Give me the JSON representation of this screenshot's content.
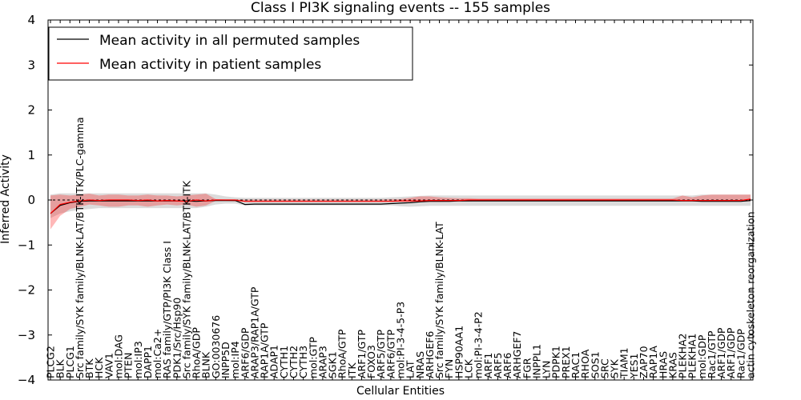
{
  "chart_data": {
    "type": "line",
    "title": "Class I PI3K signaling events -- 155 samples",
    "xlabel": "Cellular Entities",
    "ylabel": "Inferred Activity",
    "ylim": [
      -4,
      4
    ],
    "yticks": [
      -4,
      -3,
      -2,
      -1,
      0,
      1,
      2,
      3,
      4
    ],
    "ytick_labels": [
      "−4",
      "−3",
      "−2",
      "−1",
      "0",
      "1",
      "2",
      "3",
      "4"
    ],
    "legend": {
      "position": "top-left",
      "entries": [
        {
          "label": "Mean activity in all permuted samples",
          "color": "#000000"
        },
        {
          "label": "Mean activity in patient samples",
          "color": "#ff0000"
        }
      ]
    },
    "categories": [
      "PLCG2",
      "BLK",
      "PLCG1",
      "Src family/SYK family/BLNK-LAT/BTK-ITK/PLC-gamma",
      "BTK",
      "HCK",
      "VAV1",
      "mol:DAG",
      "PTEN",
      "mol:IP3",
      "DAPP1",
      "mol:Ca2+",
      "RAS family/GTP/PI3K Class I",
      "PDK1/Src/Hsp90",
      "Src family/SYK family/BLNK-LAT/BTK-ITK",
      "RhoA/GDP",
      "BLNK",
      "GO:0030676",
      "INPP5D",
      "mol:IP4",
      "ARF6/GDP",
      "ARAP3/RAP1A/GTP",
      "RAP1A/GTP",
      "ADAP1",
      "CYTH1",
      "CYTH2",
      "CYTH3",
      "mol:GTP",
      "ARAP3",
      "SGK1",
      "RhoA/GTP",
      "ITK",
      "ARF1/GTP",
      "FOXO3",
      "ARF5/GTP",
      "ARF6/GTP",
      "mol:PI-3-4-5-P3",
      "LAT",
      "NRAS",
      "ARHGEF6",
      "Src family/SYK family/BLNK-LAT",
      "FYN",
      "HSP90AA1",
      "LCK",
      "mol:PI-3-4-P2",
      "ARF1",
      "ARF5",
      "ARF6",
      "ARHGEF7",
      "FGR",
      "INPPL1",
      "LYN",
      "PDPK1",
      "PREX1",
      "RAC1",
      "RHOA",
      "SOS1",
      "SRC",
      "SYK",
      "TIAM1",
      "YES1",
      "ZAP70",
      "RAP1A",
      "HRAS",
      "KRAS",
      "PLEKHA2",
      "PLEKHA1",
      "mol:GDP",
      "Rac1/GTP",
      "ARF1/GDP",
      "ARF1/GDP",
      "Rac1/GDP",
      "actin cytoskeleton reorganization"
    ],
    "series": [
      {
        "name": "Mean activity in patient samples",
        "color": "#ff0000",
        "values": [
          -0.3,
          -0.1,
          -0.05,
          -0.02,
          0.0,
          -0.01,
          0.0,
          0.0,
          0.0,
          -0.01,
          0.0,
          -0.02,
          -0.01,
          -0.02,
          -0.03,
          0.0,
          -0.02,
          0.0,
          0.0,
          0.0,
          -0.03,
          -0.03,
          -0.03,
          -0.03,
          -0.03,
          -0.03,
          -0.03,
          -0.03,
          -0.03,
          -0.03,
          -0.03,
          -0.03,
          -0.03,
          -0.03,
          -0.03,
          -0.03,
          -0.02,
          -0.02,
          -0.02,
          -0.01,
          -0.01,
          -0.01,
          -0.01,
          0.0,
          0.0,
          0.0,
          0.0,
          0.0,
          0.0,
          0.0,
          0.0,
          0.0,
          0.0,
          0.0,
          0.0,
          0.0,
          0.0,
          0.0,
          0.0,
          0.0,
          0.0,
          0.0,
          0.0,
          0.0,
          0.0,
          -0.01,
          -0.01,
          -0.01,
          -0.01,
          -0.01,
          -0.01,
          -0.01,
          0.02
        ],
        "band_upper": [
          0.1,
          0.12,
          0.1,
          0.12,
          0.14,
          0.1,
          0.12,
          0.12,
          0.1,
          0.1,
          0.12,
          0.1,
          0.1,
          0.08,
          0.1,
          0.12,
          0.14,
          0.02,
          0.01,
          0.01,
          0.01,
          0.01,
          0.01,
          0.01,
          0.01,
          0.01,
          0.01,
          0.01,
          0.01,
          0.01,
          0.01,
          0.01,
          0.01,
          0.01,
          0.01,
          0.02,
          0.02,
          0.05,
          0.08,
          0.08,
          0.06,
          0.05,
          0.04,
          0.04,
          0.03,
          0.03,
          0.03,
          0.03,
          0.03,
          0.03,
          0.03,
          0.03,
          0.03,
          0.03,
          0.03,
          0.03,
          0.03,
          0.03,
          0.03,
          0.03,
          0.03,
          0.03,
          0.03,
          0.03,
          0.03,
          0.1,
          0.06,
          0.1,
          0.12,
          0.12,
          0.12,
          0.12,
          0.12
        ],
        "band_lower": [
          -0.65,
          -0.35,
          -0.2,
          -0.15,
          -0.1,
          -0.12,
          -0.15,
          -0.15,
          -0.12,
          -0.12,
          -0.15,
          -0.12,
          -0.1,
          -0.12,
          -0.1,
          -0.15,
          -0.12,
          -0.02,
          -0.02,
          -0.03,
          -0.04,
          -0.04,
          -0.04,
          -0.04,
          -0.04,
          -0.04,
          -0.04,
          -0.04,
          -0.04,
          -0.04,
          -0.04,
          -0.04,
          -0.04,
          -0.04,
          -0.04,
          -0.04,
          -0.04,
          -0.04,
          -0.04,
          -0.04,
          -0.04,
          -0.03,
          -0.03,
          -0.03,
          -0.02,
          -0.02,
          -0.02,
          -0.02,
          -0.02,
          -0.02,
          -0.02,
          -0.02,
          -0.02,
          -0.02,
          -0.02,
          -0.02,
          -0.02,
          -0.02,
          -0.02,
          -0.02,
          -0.02,
          -0.02,
          -0.02,
          -0.02,
          -0.02,
          -0.03,
          -0.03,
          -0.03,
          -0.03,
          -0.03,
          -0.03,
          -0.03,
          -0.03
        ]
      },
      {
        "name": "Mean activity in all permuted samples",
        "color": "#000000",
        "values": [
          -0.3,
          -0.12,
          -0.06,
          -0.03,
          -0.02,
          -0.02,
          -0.02,
          -0.02,
          -0.02,
          -0.02,
          -0.02,
          -0.02,
          -0.02,
          -0.02,
          -0.02,
          -0.03,
          -0.02,
          -0.01,
          -0.01,
          -0.01,
          -0.1,
          -0.09,
          -0.09,
          -0.09,
          -0.09,
          -0.09,
          -0.09,
          -0.09,
          -0.09,
          -0.09,
          -0.09,
          -0.09,
          -0.09,
          -0.09,
          -0.09,
          -0.08,
          -0.07,
          -0.06,
          -0.04,
          -0.03,
          -0.03,
          -0.03,
          -0.02,
          -0.02,
          -0.02,
          -0.02,
          -0.02,
          -0.02,
          -0.02,
          -0.02,
          -0.02,
          -0.02,
          -0.02,
          -0.02,
          -0.02,
          -0.02,
          -0.02,
          -0.02,
          -0.02,
          -0.02,
          -0.02,
          -0.02,
          -0.02,
          -0.02,
          -0.02,
          -0.02,
          -0.02,
          -0.03,
          -0.03,
          -0.03,
          -0.03,
          -0.03,
          -0.01
        ],
        "band_upper": [
          0.12,
          0.15,
          0.15,
          0.15,
          0.15,
          0.15,
          0.15,
          0.15,
          0.15,
          0.15,
          0.15,
          0.15,
          0.15,
          0.15,
          0.15,
          0.15,
          0.15,
          0.12,
          0.08,
          0.06,
          0.05,
          0.05,
          0.05,
          0.05,
          0.05,
          0.05,
          0.05,
          0.05,
          0.05,
          0.05,
          0.05,
          0.05,
          0.05,
          0.05,
          0.05,
          0.06,
          0.07,
          0.08,
          0.09,
          0.1,
          0.1,
          0.1,
          0.1,
          0.1,
          0.1,
          0.1,
          0.1,
          0.1,
          0.1,
          0.1,
          0.1,
          0.1,
          0.1,
          0.1,
          0.1,
          0.1,
          0.1,
          0.1,
          0.1,
          0.1,
          0.1,
          0.1,
          0.1,
          0.1,
          0.1,
          0.1,
          0.1,
          0.12,
          0.12,
          0.12,
          0.12,
          0.12,
          0.12
        ],
        "band_lower": [
          -0.4,
          -0.3,
          -0.25,
          -0.22,
          -0.2,
          -0.18,
          -0.18,
          -0.18,
          -0.18,
          -0.18,
          -0.18,
          -0.18,
          -0.18,
          -0.18,
          -0.18,
          -0.18,
          -0.15,
          -0.1,
          -0.08,
          -0.08,
          -0.12,
          -0.12,
          -0.12,
          -0.12,
          -0.12,
          -0.12,
          -0.12,
          -0.12,
          -0.12,
          -0.12,
          -0.12,
          -0.12,
          -0.12,
          -0.12,
          -0.12,
          -0.12,
          -0.14,
          -0.15,
          -0.14,
          -0.13,
          -0.13,
          -0.13,
          -0.13,
          -0.13,
          -0.13,
          -0.13,
          -0.13,
          -0.13,
          -0.13,
          -0.13,
          -0.13,
          -0.13,
          -0.13,
          -0.13,
          -0.13,
          -0.13,
          -0.13,
          -0.13,
          -0.13,
          -0.13,
          -0.13,
          -0.13,
          -0.13,
          -0.13,
          -0.13,
          -0.13,
          -0.13,
          -0.13,
          -0.13,
          -0.13,
          -0.13,
          -0.13,
          -0.13
        ]
      }
    ]
  }
}
